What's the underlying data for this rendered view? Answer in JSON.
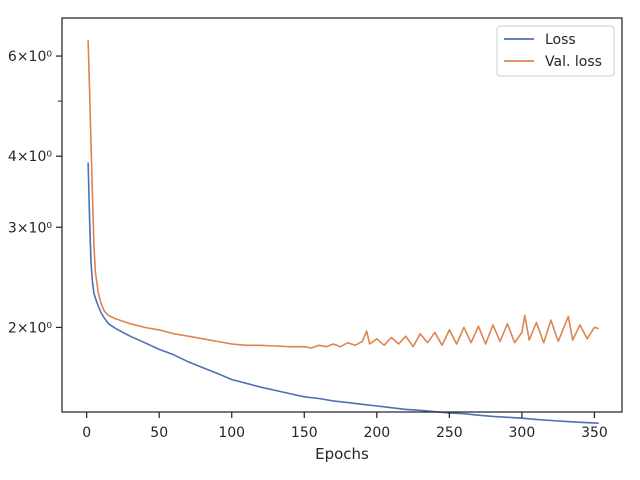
{
  "chart_data": {
    "type": "line",
    "title": "",
    "xlabel": "Epochs",
    "ylabel": "",
    "xlim": [
      -17,
      369
    ],
    "ylim": [
      1.42,
      7.0
    ],
    "yscale": "log",
    "grid": false,
    "legend": "top-right",
    "x_ticks": [
      0,
      50,
      100,
      150,
      200,
      250,
      300,
      350
    ],
    "y_ticks": [
      {
        "value": 2,
        "label": "2×10⁰"
      },
      {
        "value": 3,
        "label": "3×10⁰"
      },
      {
        "value": 4,
        "label": "4×10⁰"
      },
      {
        "value": 6,
        "label": "6×10⁰"
      }
    ],
    "y_minor_ticks": [
      5
    ],
    "series": [
      {
        "name": "Loss",
        "color": "#4c72b0",
        "x": [
          1,
          2,
          3,
          4,
          5,
          6,
          8,
          10,
          12,
          15,
          20,
          25,
          30,
          40,
          50,
          60,
          70,
          80,
          90,
          100,
          110,
          120,
          130,
          140,
          150,
          160,
          170,
          180,
          190,
          200,
          210,
          220,
          230,
          240,
          250,
          260,
          270,
          280,
          290,
          300,
          310,
          320,
          330,
          340,
          353
        ],
        "y": [
          3.9,
          3.1,
          2.6,
          2.4,
          2.3,
          2.25,
          2.18,
          2.12,
          2.08,
          2.03,
          1.99,
          1.96,
          1.93,
          1.88,
          1.83,
          1.79,
          1.74,
          1.7,
          1.66,
          1.62,
          1.595,
          1.57,
          1.55,
          1.53,
          1.51,
          1.5,
          1.485,
          1.475,
          1.465,
          1.455,
          1.445,
          1.435,
          1.43,
          1.422,
          1.415,
          1.41,
          1.402,
          1.395,
          1.39,
          1.385,
          1.378,
          1.372,
          1.367,
          1.362,
          1.357
        ]
      },
      {
        "name": "Val. loss",
        "color": "#dd8452",
        "x": [
          1,
          2,
          3,
          4,
          5,
          6,
          8,
          10,
          12,
          15,
          20,
          25,
          30,
          40,
          50,
          60,
          70,
          80,
          90,
          100,
          110,
          120,
          130,
          140,
          150,
          155,
          160,
          165,
          170,
          175,
          180,
          185,
          190,
          193,
          195,
          200,
          205,
          210,
          215,
          220,
          225,
          230,
          235,
          240,
          245,
          250,
          255,
          260,
          265,
          270,
          275,
          280,
          285,
          290,
          295,
          300,
          302,
          305,
          310,
          315,
          320,
          325,
          330,
          332,
          335,
          340,
          345,
          350,
          353
        ],
        "y": [
          6.4,
          5.2,
          4.2,
          3.4,
          2.8,
          2.5,
          2.3,
          2.2,
          2.14,
          2.1,
          2.07,
          2.05,
          2.03,
          2.0,
          1.98,
          1.95,
          1.93,
          1.91,
          1.89,
          1.87,
          1.86,
          1.86,
          1.855,
          1.85,
          1.85,
          1.84,
          1.86,
          1.85,
          1.87,
          1.85,
          1.88,
          1.86,
          1.89,
          1.97,
          1.87,
          1.91,
          1.86,
          1.92,
          1.87,
          1.93,
          1.85,
          1.95,
          1.88,
          1.96,
          1.86,
          1.98,
          1.87,
          2.0,
          1.88,
          2.01,
          1.87,
          2.02,
          1.89,
          2.03,
          1.88,
          1.96,
          2.1,
          1.9,
          2.04,
          1.88,
          2.06,
          1.89,
          2.03,
          2.09,
          1.9,
          2.02,
          1.91,
          2.0,
          1.99
        ]
      }
    ]
  }
}
